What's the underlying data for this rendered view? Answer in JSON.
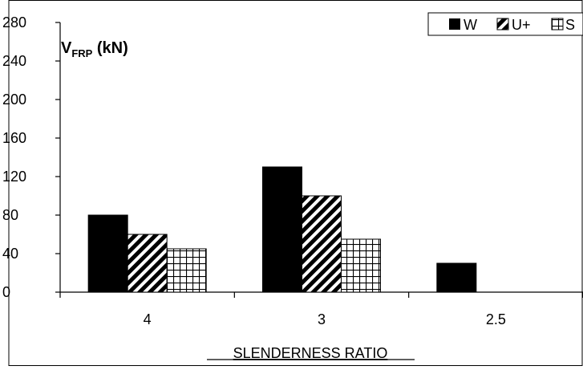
{
  "chart_data": {
    "type": "bar",
    "title": "",
    "ylabel_main": "V",
    "ylabel_sub": "FRP",
    "ylabel_unit": " (kN)",
    "xlabel": "SLENDERNESS RATIO",
    "categories": [
      "4",
      "3",
      "2.5"
    ],
    "series": [
      {
        "name": "W",
        "values": [
          80,
          130,
          30
        ],
        "pattern": "solid-black"
      },
      {
        "name": "U+",
        "values": [
          60,
          100,
          null
        ],
        "pattern": "diagonal-hatch"
      },
      {
        "name": "S",
        "values": [
          45,
          55,
          null
        ],
        "pattern": "grid-hatch"
      }
    ],
    "ylim": [
      0,
      280
    ],
    "yticks": [
      0,
      40,
      80,
      120,
      160,
      200,
      240,
      280
    ],
    "grid": false,
    "legend_position": "top-right"
  }
}
